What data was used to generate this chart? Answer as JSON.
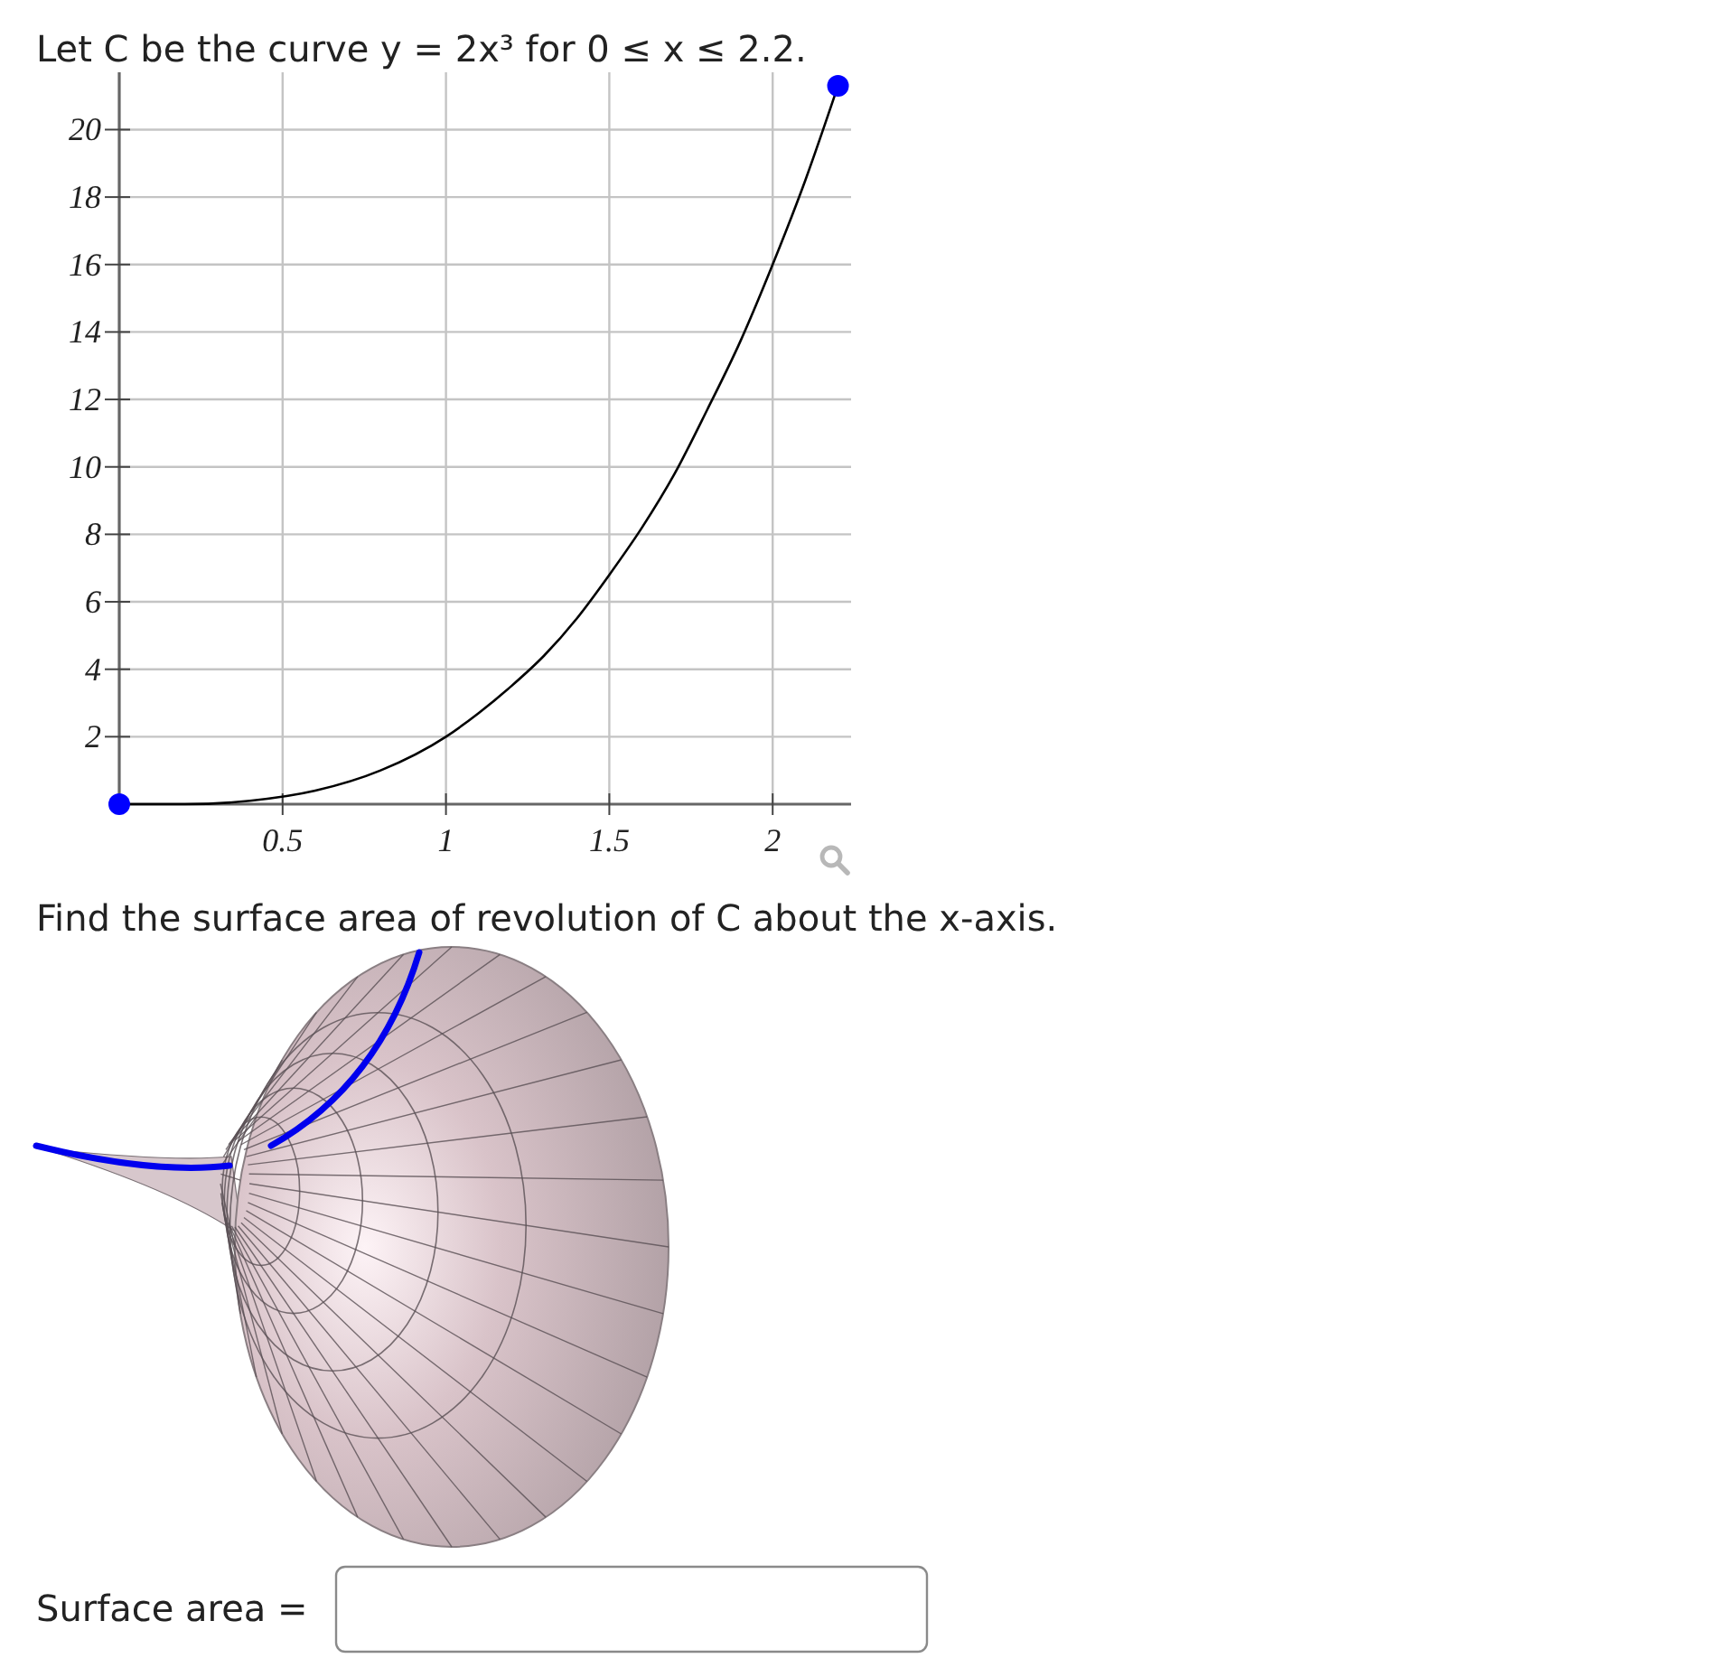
{
  "chart_data": {
    "type": "line",
    "title": "Let C be the curve y = 2x³ for 0 ≤ x ≤ 2.2.",
    "annotations": [
      "Find the surface area of revolution of C about the x-axis.",
      "Surface area ="
    ],
    "series": [
      {
        "color": "#000000",
        "x": [
          0,
          0.2,
          0.4,
          0.6,
          0.8,
          1,
          1.1,
          1.2,
          1.3,
          1.4,
          1.5,
          1.6,
          1.7,
          1.8,
          1.9,
          2,
          2.1,
          2.2
        ],
        "values": [
          0,
          0,
          0.1,
          0.4,
          1,
          2,
          2.7,
          3.5,
          4.4,
          5.5,
          6.8,
          8.2,
          9.8,
          11.7,
          13.7,
          16,
          18.5,
          21.3
        ]
      },
      {
        "type": "scatter",
        "color": "#0000ff",
        "marker": "circle",
        "x": [
          0,
          2.2
        ],
        "values": [
          0,
          21.3
        ]
      }
    ],
    "xlim": [
      0,
      2.24
    ],
    "ylim": [
      0,
      21.7
    ],
    "xticks": [
      0.5,
      1,
      1.5,
      2
    ],
    "yticks": [
      2,
      4,
      6,
      8,
      10,
      12,
      14,
      16,
      18,
      20
    ],
    "grid": true
  }
}
